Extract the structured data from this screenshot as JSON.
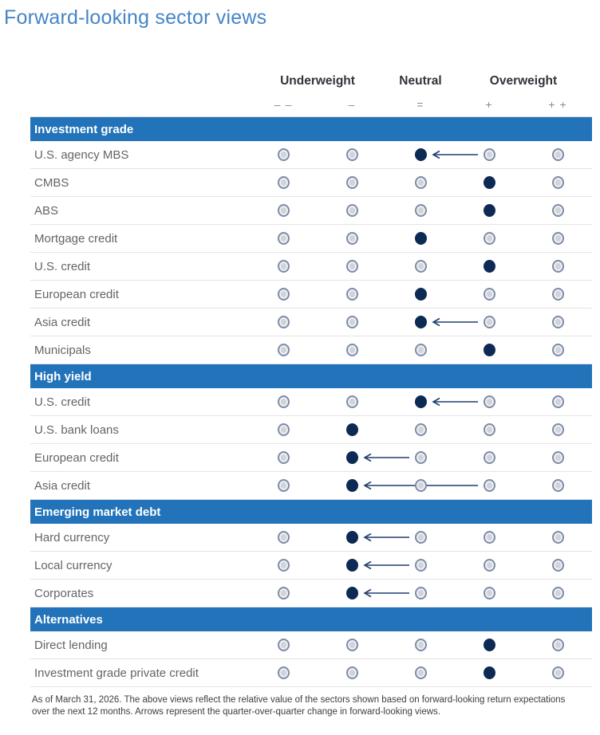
{
  "title": "Forward-looking sector views",
  "legend": {
    "group_labels": [
      "Underweight",
      "Neutral",
      "Overweight"
    ],
    "symbols": [
      "– –",
      "–",
      "=",
      "+",
      "+ +"
    ]
  },
  "footnote": "As of March 31, 2026. The above views reflect the relative value of the sectors shown based on forward-looking return expectations over the next 12 months. Arrows represent the quarter-over-quarter change in forward-looking views.",
  "colors": {
    "title_blue": "#4585c6",
    "section_bar_blue": "#2273b9",
    "filled_dot_navy": "#0d2a54",
    "open_dot_fill": "#d2d3d6",
    "open_dot_border": "#7e8ca9",
    "arrow_navy": "#1f3f72",
    "header_text": "#33343c",
    "row_label_gray": "#63646a"
  },
  "chart_data": {
    "type": "table",
    "title": "Forward-looking sector views",
    "scale": [
      "--",
      "-",
      "=",
      "+",
      "++"
    ],
    "scale_groups": {
      "Underweight": [
        "--",
        "-"
      ],
      "Neutral": [
        "="
      ],
      "Overweight": [
        "+",
        "++"
      ]
    },
    "arrow_meaning": "quarter-over-quarter change in forward-looking views",
    "sections": [
      {
        "name": "Investment grade",
        "rows": [
          {
            "sector": "U.S. agency MBS",
            "view": "=",
            "previous": "+"
          },
          {
            "sector": "CMBS",
            "view": "+"
          },
          {
            "sector": "ABS",
            "view": "+"
          },
          {
            "sector": "Mortgage credit",
            "view": "="
          },
          {
            "sector": "U.S. credit",
            "view": "+"
          },
          {
            "sector": "European credit",
            "view": "="
          },
          {
            "sector": "Asia credit",
            "view": "=",
            "previous": "+"
          },
          {
            "sector": "Municipals",
            "view": "+"
          }
        ]
      },
      {
        "name": "High yield",
        "rows": [
          {
            "sector": "U.S. credit",
            "view": "=",
            "previous": "+"
          },
          {
            "sector": "U.S. bank loans",
            "view": "-"
          },
          {
            "sector": "European credit",
            "view": "-",
            "previous": "="
          },
          {
            "sector": "Asia credit",
            "view": "-",
            "previous": "+"
          }
        ]
      },
      {
        "name": "Emerging market debt",
        "rows": [
          {
            "sector": "Hard currency",
            "view": "-",
            "previous": "="
          },
          {
            "sector": "Local currency",
            "view": "-",
            "previous": "="
          },
          {
            "sector": "Corporates",
            "view": "-",
            "previous": "="
          }
        ]
      },
      {
        "name": "Alternatives",
        "rows": [
          {
            "sector": "Direct lending",
            "view": "+"
          },
          {
            "sector": "Investment grade private credit",
            "view": "+"
          }
        ]
      }
    ]
  }
}
